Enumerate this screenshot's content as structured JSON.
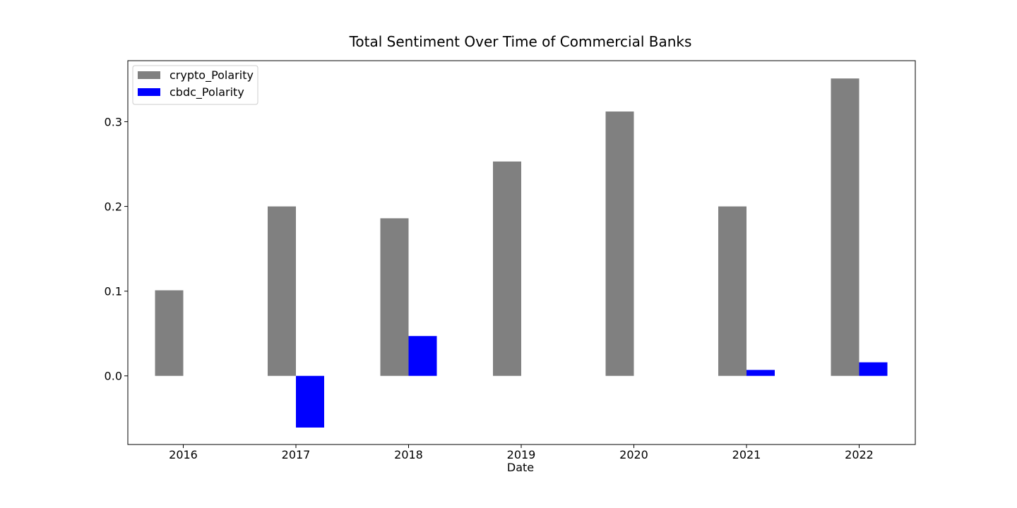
{
  "chart_data": {
    "type": "bar",
    "title": "Total Sentiment Over Time of Commercial Banks",
    "xlabel": "Date",
    "ylabel": "",
    "categories": [
      "2016",
      "2017",
      "2018",
      "2019",
      "2020",
      "2021",
      "2022"
    ],
    "series": [
      {
        "name": "crypto_Polarity",
        "color": "#808080",
        "values": [
          0.101,
          0.2,
          0.186,
          0.253,
          0.312,
          0.2,
          0.351
        ]
      },
      {
        "name": "cbdc_Polarity",
        "color": "#0000ff",
        "values": [
          0.0,
          -0.061,
          0.047,
          0.0,
          0.0,
          0.007,
          0.016
        ]
      }
    ],
    "yticks": [
      0.0,
      0.1,
      0.2,
      0.3
    ],
    "ytick_labels": [
      "0.0",
      "0.1",
      "0.2",
      "0.3"
    ],
    "ylim": [
      -0.081,
      0.372
    ],
    "grid": false,
    "legend_position": "top-left"
  }
}
